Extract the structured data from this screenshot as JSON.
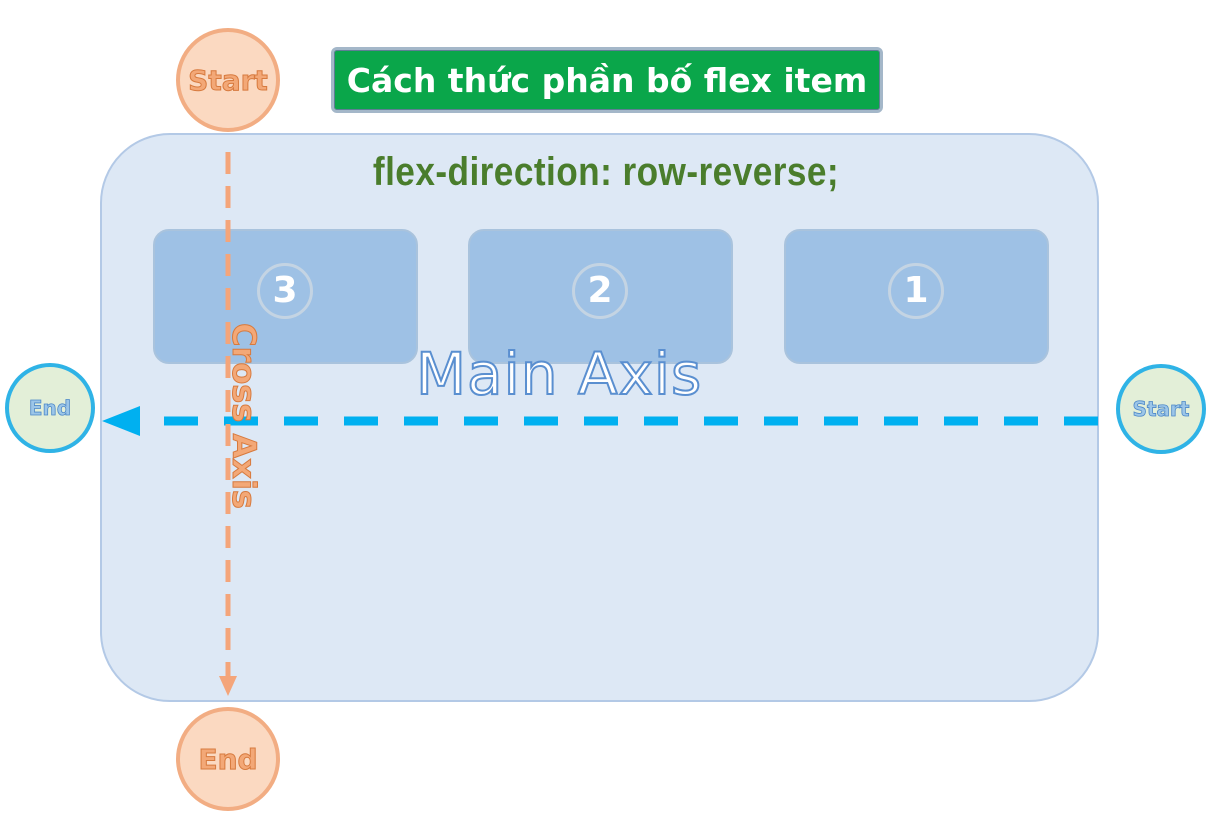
{
  "title": "Cách thức phần bố flex item",
  "container_label": "flex-direction: row-reverse;",
  "items": [
    {
      "label": "3",
      "order": "third"
    },
    {
      "label": "2",
      "order": "second"
    },
    {
      "label": "1",
      "order": "first"
    }
  ],
  "main_axis": {
    "label": "Main Axis",
    "start_label": "Start",
    "end_label": "End",
    "color": "#00b0f0"
  },
  "cross_axis": {
    "label": "Cross Axis",
    "start_label": "Start",
    "end_label": "End",
    "color": "#f4a57a"
  },
  "colors": {
    "banner": "#0aa64a",
    "container": "#dde8f5",
    "item": "#9ec1e5",
    "label_text": "#4a7d2c"
  }
}
